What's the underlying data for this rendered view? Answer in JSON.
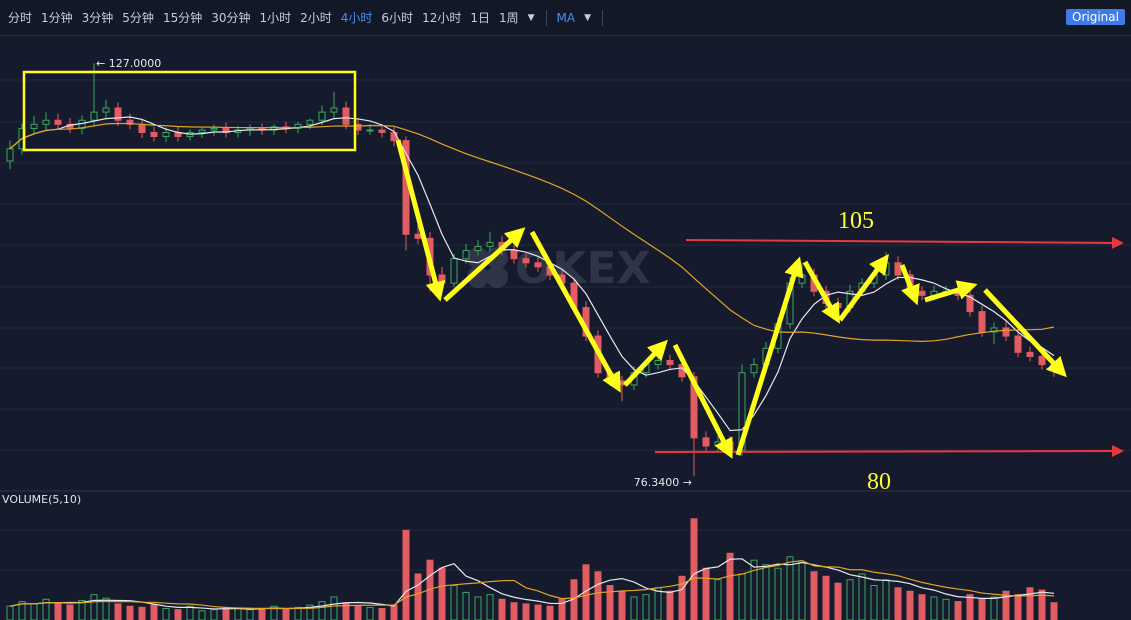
{
  "toolbar": {
    "intervals": [
      "分时",
      "1分钟",
      "3分钟",
      "5分钟",
      "15分钟",
      "30分钟",
      "1小时",
      "2小时",
      "4小时",
      "6小时",
      "12小时",
      "1日",
      "1周"
    ],
    "active": 8,
    "indicator": "MA",
    "mode": "Original"
  },
  "chart_data": {
    "type": "candlestick",
    "watermark": "OKEX",
    "volume_label": "VOLUME(5,10)",
    "ylim": [
      74.6,
      130.1
    ],
    "volume_ylim": [
      0,
      100
    ],
    "up_color": "#3aa860",
    "down_color": "#e25d62",
    "open": [
      115,
      116.5,
      119,
      119.5,
      120,
      119.5,
      119,
      120,
      121,
      121.5,
      120,
      119.5,
      118.5,
      118,
      118.5,
      118,
      118.5,
      118.8,
      119,
      118.5,
      118.8,
      119,
      118.8,
      119.2,
      119,
      119.5,
      120,
      121,
      121.5,
      119.5,
      118.8,
      118.8,
      118.5,
      117.5,
      106,
      105.5,
      101,
      100,
      103,
      104,
      104.5,
      105,
      104,
      103,
      102.5,
      102,
      101,
      100,
      97,
      93.5,
      89,
      88,
      87.5,
      89,
      90,
      90.5,
      90,
      88.5,
      81,
      80,
      80.5,
      79.5,
      89,
      90,
      92,
      95,
      100,
      101,
      99,
      97.5,
      97,
      99,
      100,
      101,
      102.5,
      101,
      99,
      98.5,
      99,
      99,
      98.5,
      96.5,
      94,
      94.5,
      93.5,
      91.5,
      91,
      90
    ],
    "high": [
      117.5,
      119.6,
      120.5,
      121,
      120.8,
      120.3,
      120.6,
      127,
      122.5,
      122.2,
      120.8,
      120.1,
      119.2,
      119.1,
      119.3,
      118.9,
      119.2,
      119.5,
      119.7,
      119.3,
      119.5,
      119.6,
      119.5,
      119.8,
      119.8,
      120.2,
      121.8,
      123.5,
      122.3,
      120.2,
      119.5,
      119.5,
      119.2,
      118,
      107.2,
      106.3,
      102,
      103.6,
      104.8,
      105.3,
      106.3,
      105.8,
      104.7,
      103.6,
      103.2,
      102.6,
      101.6,
      100.6,
      97.8,
      94.2,
      89.6,
      88.6,
      89.8,
      90.6,
      91.5,
      91.2,
      90.7,
      89.1,
      81.8,
      81.3,
      81.2,
      90,
      90.8,
      92.8,
      95.8,
      100.8,
      102.5,
      101.8,
      99.7,
      98.2,
      99.8,
      100.6,
      101.7,
      103.8,
      103.3,
      101.6,
      99.6,
      99.7,
      99.7,
      99.9,
      99.2,
      97.2,
      95.2,
      95.4,
      94.2,
      92.2,
      91.6,
      90.6
    ],
    "low": [
      114,
      115.8,
      118.4,
      118.8,
      118.9,
      118.4,
      118.3,
      119.3,
      120.3,
      119.3,
      118.9,
      117.8,
      117.4,
      117.3,
      117.4,
      117.5,
      117.8,
      118.1,
      117.9,
      117.9,
      118.1,
      118.2,
      118.2,
      118.4,
      118.4,
      118.9,
      119.4,
      120.3,
      118.9,
      118.2,
      118.2,
      117.9,
      116.8,
      104,
      104.8,
      99,
      99.2,
      99.5,
      102.4,
      103.4,
      103.9,
      103.4,
      102.4,
      101.9,
      101.4,
      100.4,
      99.4,
      96.4,
      92.9,
      88.4,
      87.4,
      85.5,
      86.9,
      88.4,
      89.4,
      89.4,
      87.9,
      76.34,
      79.4,
      79.4,
      78.9,
      78.8,
      88.4,
      89.4,
      91.4,
      94.4,
      99.4,
      98.4,
      96.9,
      95.5,
      96.4,
      98.4,
      99.4,
      100.4,
      100.4,
      98.4,
      97.9,
      97.9,
      98.4,
      97.9,
      95.9,
      93.4,
      92.5,
      92.9,
      90.9,
      90.4,
      89.4,
      88.5
    ],
    "close": [
      116.5,
      119,
      119.5,
      120,
      119.5,
      119,
      120,
      121,
      121.5,
      120,
      119.5,
      118.5,
      118,
      118.5,
      118,
      118.5,
      118.8,
      119,
      118.5,
      118.8,
      119,
      118.8,
      119.2,
      119,
      119.5,
      120,
      121,
      121.5,
      119.5,
      118.8,
      118.8,
      118.5,
      117.5,
      106,
      105.5,
      101,
      100,
      103,
      104,
      104.5,
      105,
      104,
      103,
      102.5,
      102,
      101,
      100,
      97,
      93.5,
      89,
      88,
      87.5,
      89,
      90,
      90.5,
      90,
      88.5,
      81,
      80,
      80.5,
      79.5,
      89,
      90,
      92,
      95,
      100,
      101,
      99,
      97.5,
      97,
      99,
      100,
      101,
      102.5,
      101,
      99,
      98.5,
      99,
      99,
      98.5,
      96.5,
      94,
      94.5,
      93.5,
      91.5,
      91,
      90,
      89.5
    ],
    "volume": [
      12,
      16,
      14,
      18,
      15,
      13,
      17,
      22,
      19,
      14,
      12,
      11,
      13,
      10,
      9,
      12,
      8,
      9,
      11,
      10,
      9,
      10,
      12,
      9,
      11,
      13,
      16,
      20,
      15,
      12,
      11,
      10,
      13,
      78,
      40,
      52,
      45,
      30,
      24,
      20,
      22,
      18,
      15,
      14,
      13,
      12,
      18,
      35,
      48,
      42,
      30,
      25,
      20,
      22,
      28,
      25,
      38,
      88,
      45,
      35,
      58,
      40,
      52,
      48,
      45,
      55,
      50,
      42,
      38,
      32,
      35,
      40,
      30,
      35,
      28,
      25,
      22,
      20,
      18,
      16,
      22,
      18,
      20,
      25,
      22,
      28,
      26,
      15
    ],
    "high_label": "← 127.0000",
    "low_label": "76.3400 →",
    "annotations": [
      "105",
      "80"
    ]
  }
}
